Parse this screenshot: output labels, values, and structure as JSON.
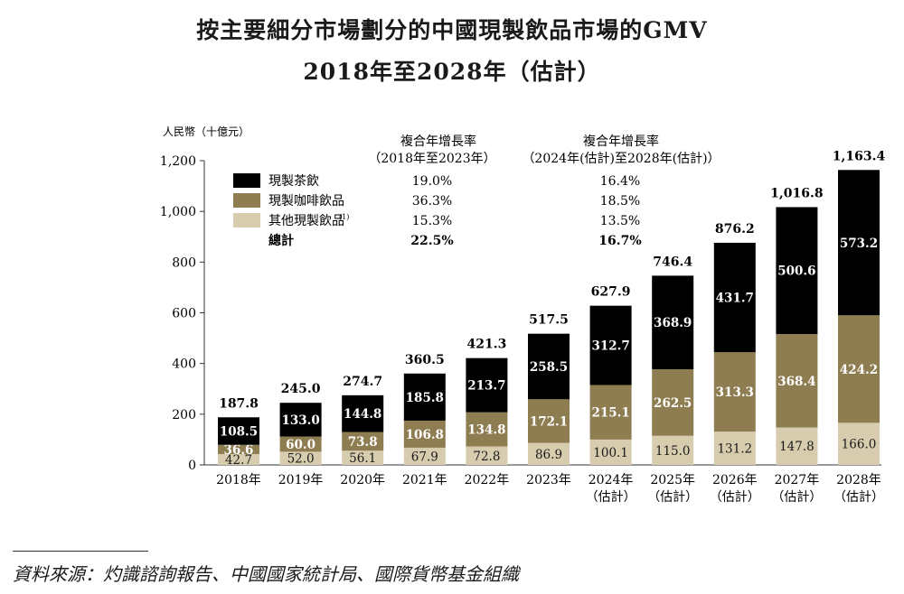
{
  "title": "按主要細分市場劃分的中國現製飲品市場的GMV",
  "subtitle": "2018年至2028年（估計）",
  "source": "資料來源：灼識諮詢報告、中國國家統計局、國際貨幣基金組織",
  "colors": {
    "tea": "#000000",
    "coffee": "#8f7d52",
    "other": "#d8ccae"
  },
  "chart_data": {
    "type": "bar",
    "stacked": true,
    "ylabel": "人民幣（十億元）",
    "ylim": [
      0,
      1200
    ],
    "yticks": [
      "0",
      "200",
      "400",
      "600",
      "800",
      "1,000",
      "1,200"
    ],
    "categories": [
      {
        "year": "2018年",
        "sub": ""
      },
      {
        "year": "2019年",
        "sub": ""
      },
      {
        "year": "2020年",
        "sub": ""
      },
      {
        "year": "2021年",
        "sub": ""
      },
      {
        "year": "2022年",
        "sub": ""
      },
      {
        "year": "2023年",
        "sub": ""
      },
      {
        "year": "2024年",
        "sub": "（估計）"
      },
      {
        "year": "2025年",
        "sub": "（估計）"
      },
      {
        "year": "2026年",
        "sub": "（估計）"
      },
      {
        "year": "2027年",
        "sub": "（估計）"
      },
      {
        "year": "2028年",
        "sub": "（估計）"
      }
    ],
    "series": [
      {
        "name": "其他現製飲品",
        "key": "other",
        "values": [
          42.7,
          52.0,
          56.1,
          67.9,
          72.8,
          86.9,
          100.1,
          115.0,
          131.2,
          147.8,
          166.0
        ],
        "labels": [
          "42.7",
          "52.0",
          "56.1",
          "67.9",
          "72.8",
          "86.9",
          "100.1",
          "115.0",
          "131.2",
          "147.8",
          "166.0"
        ]
      },
      {
        "name": "現製咖啡飲品",
        "key": "coffee",
        "values": [
          36.6,
          60.0,
          73.8,
          106.8,
          134.8,
          172.1,
          215.1,
          262.5,
          313.3,
          368.4,
          424.2
        ],
        "labels": [
          "36.6",
          "60.0",
          "73.8",
          "106.8",
          "134.8",
          "172.1",
          "215.1",
          "262.5",
          "313.3",
          "368.4",
          "424.2"
        ]
      },
      {
        "name": "現製茶飲",
        "key": "tea",
        "values": [
          108.5,
          133.0,
          144.8,
          185.8,
          213.7,
          258.5,
          312.7,
          368.9,
          431.7,
          500.6,
          573.2
        ],
        "labels": [
          "108.5",
          "133.0",
          "144.8",
          "185.8",
          "213.7",
          "258.5",
          "312.7",
          "368.9",
          "431.7",
          "500.6",
          "573.2"
        ]
      }
    ],
    "totals": [
      187.8,
      245.0,
      274.7,
      360.5,
      421.3,
      517.5,
      627.9,
      746.4,
      876.2,
      1016.8,
      1163.4
    ],
    "total_labels": [
      "187.8",
      "245.0",
      "274.7",
      "360.5",
      "421.3",
      "517.5",
      "627.9",
      "746.4",
      "876.2",
      "1,016.8",
      "1,163.4"
    ],
    "legend": {
      "cagr1_header": [
        "複合年增長率",
        "（2018年至2023年）"
      ],
      "cagr2_header": [
        "複合年增長率",
        "（2024年(估計)至2028年(估計)）"
      ],
      "rows": [
        {
          "name": "現製茶飲",
          "key": "tea",
          "cagr1": "19.0%",
          "cagr2": "16.4%"
        },
        {
          "name": "現製咖啡飲品",
          "key": "coffee",
          "cagr1": "36.3%",
          "cagr2": "18.5%"
        },
        {
          "name": "其他現製飲品",
          "sup": "(1)",
          "key": "other",
          "cagr1": "15.3%",
          "cagr2": "13.5%"
        },
        {
          "name": "總計",
          "key": "total",
          "cagr1": "22.5%",
          "cagr2": "16.7%"
        }
      ]
    }
  }
}
